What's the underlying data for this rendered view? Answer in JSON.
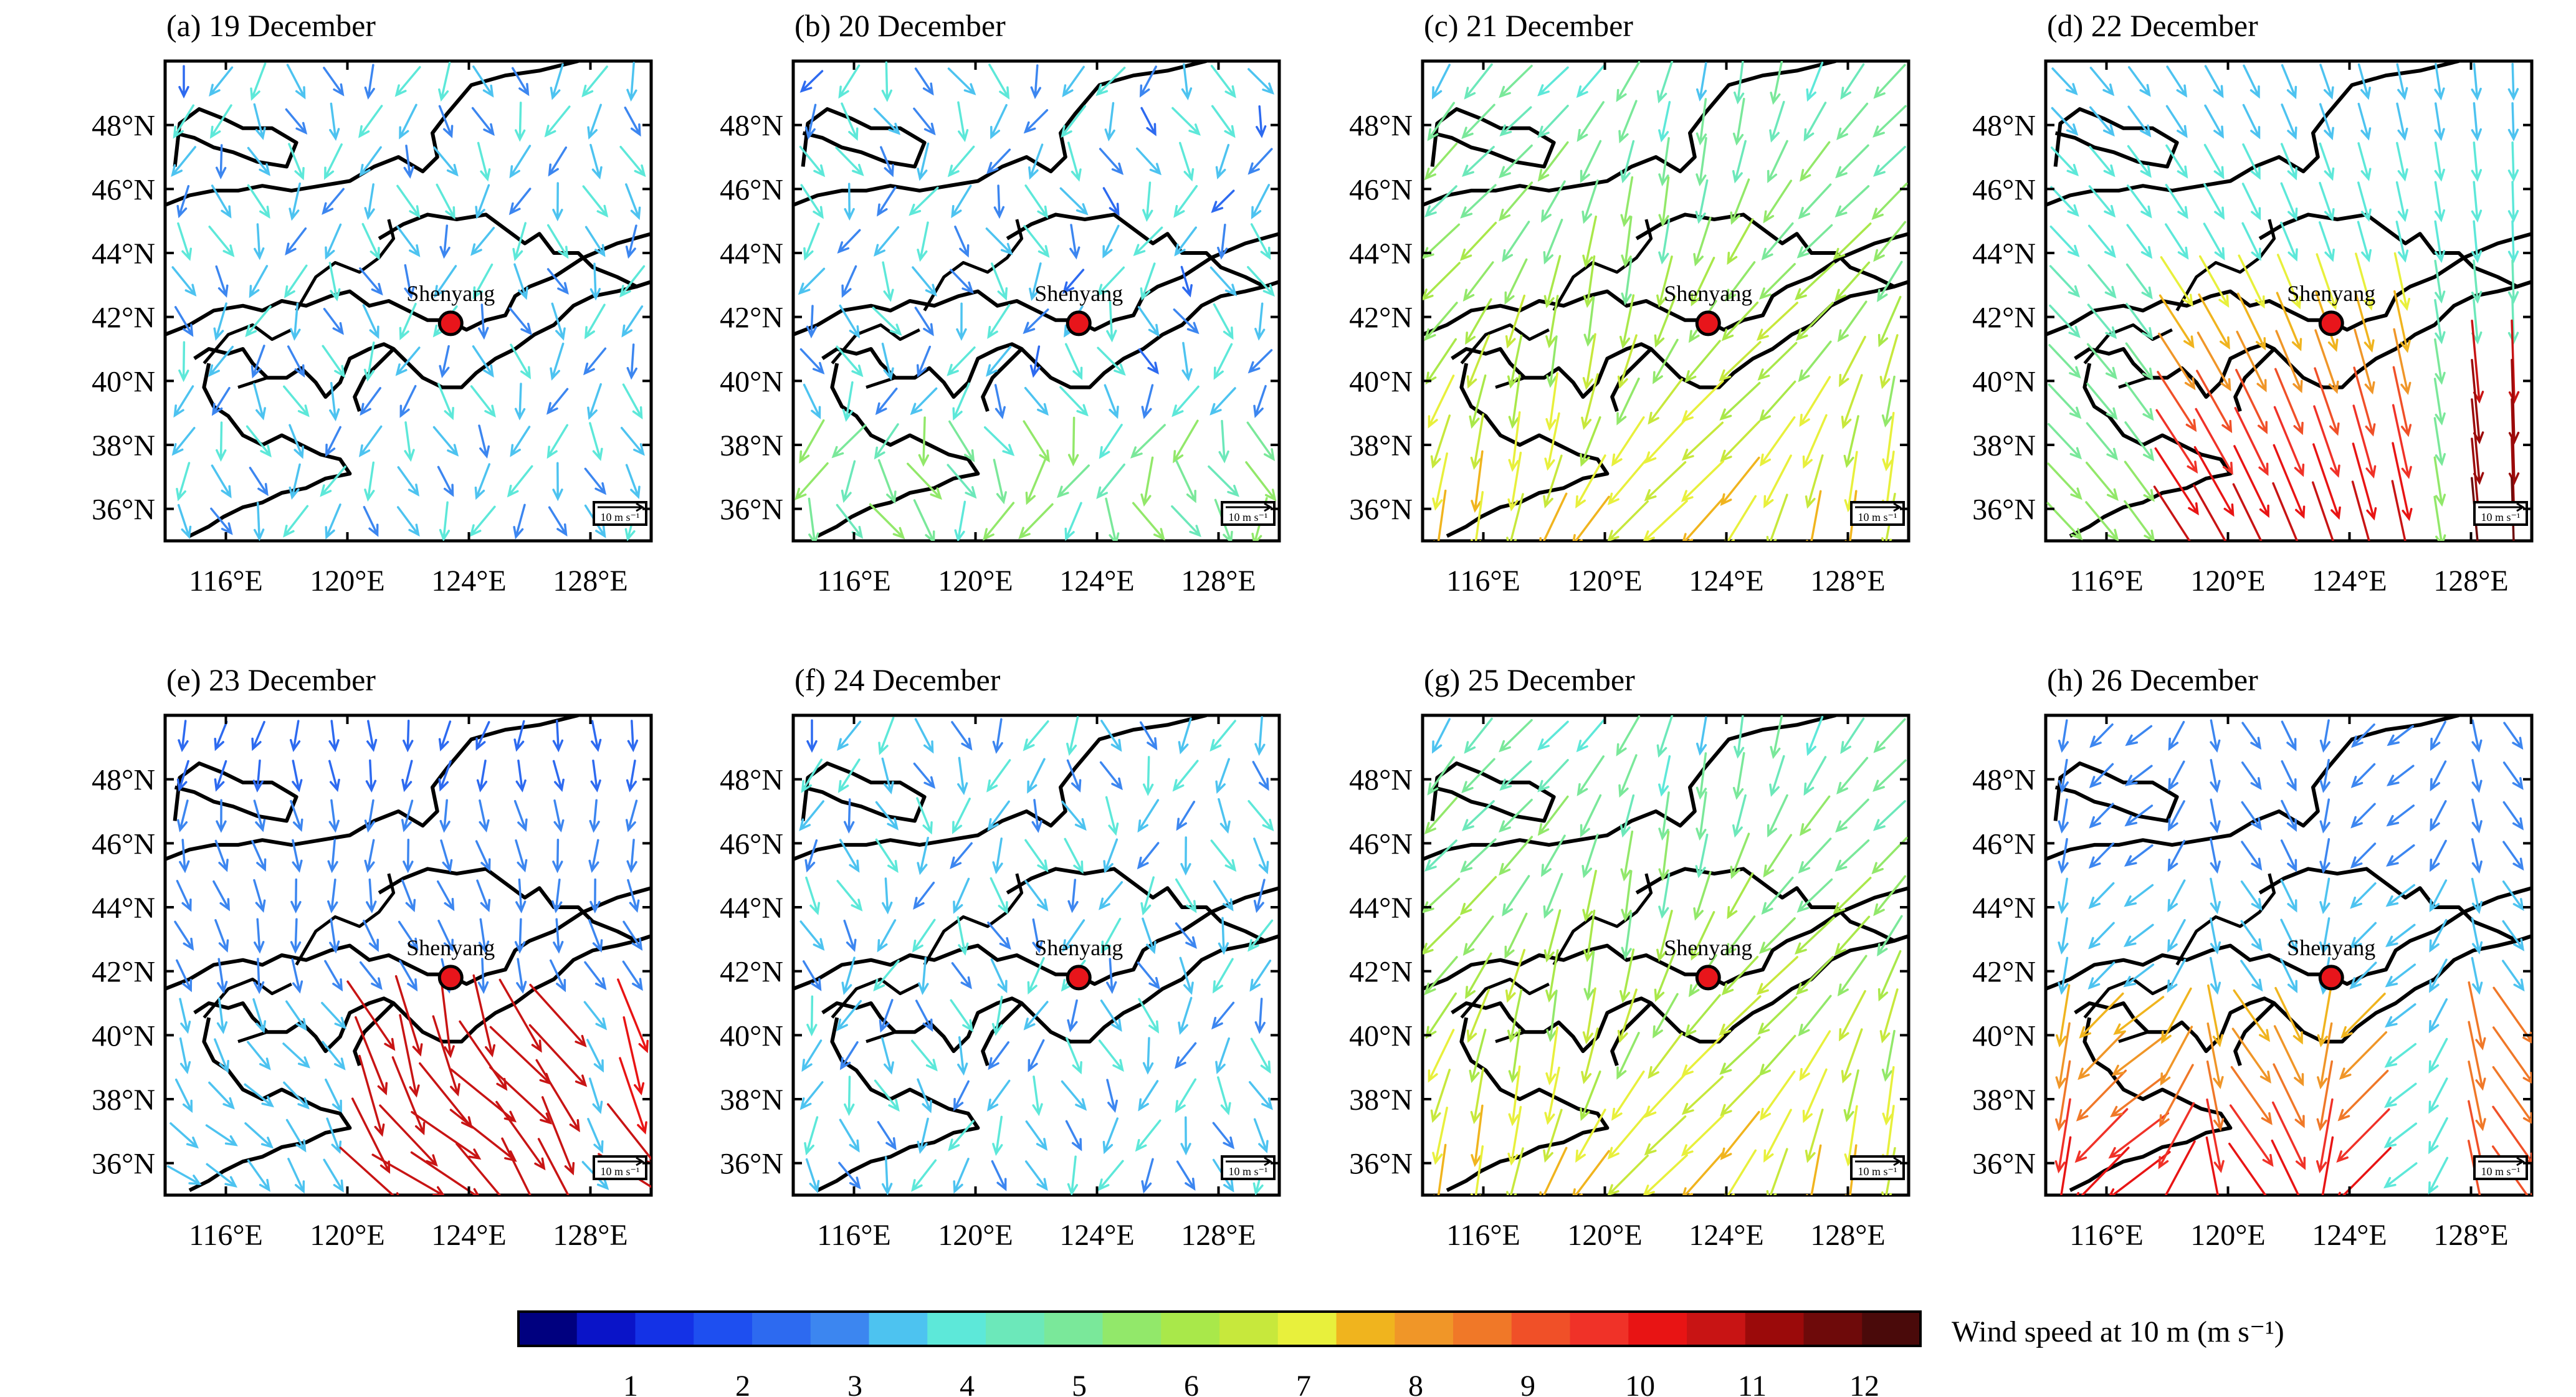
{
  "colors": {
    "wind_scale": [
      "#00007f",
      "#0a14c8",
      "#1432e6",
      "#1e4ff0",
      "#2d6af0",
      "#3c86f0",
      "#4dc3f0",
      "#5de8d9",
      "#6ce8ba",
      "#7ae89a",
      "#92e86a",
      "#a9e84a",
      "#c7e83c",
      "#e8f03c",
      "#f0b41e",
      "#f09628",
      "#f07828",
      "#f05028",
      "#f03228",
      "#e81414",
      "#c81414",
      "#9b0a0a",
      "#6e0a0a",
      "#4a0a0a"
    ],
    "city": "#e8151b"
  },
  "city": {
    "name": "Shenyang"
  },
  "reference_vector": {
    "label": "10 m s⁻¹"
  },
  "panels": [
    {
      "title": "(a) 19 December",
      "pattern": "calm"
    },
    {
      "title": "(b) 20 December",
      "pattern": "calm_w"
    },
    {
      "title": "(c) 21 December",
      "pattern": "ne_moderate"
    },
    {
      "title": "(d) 22 December",
      "pattern": "strong_se"
    },
    {
      "title": "(e) 23 December",
      "pattern": "strong_sw"
    },
    {
      "title": "(f) 24 December",
      "pattern": "calm"
    },
    {
      "title": "(g) 25 December",
      "pattern": "ne_moderate"
    },
    {
      "title": "(h) 26 December",
      "pattern": "strong_s"
    }
  ],
  "chart_data": {
    "type": "vector-field",
    "title": "",
    "x_ticks": [
      "116°E",
      "120°E",
      "124°E",
      "128°E"
    ],
    "y_ticks": [
      "48°N",
      "46°N",
      "44°N",
      "42°N",
      "40°N",
      "38°N",
      "36°N"
    ],
    "lon_range": [
      114,
      130
    ],
    "lat_range": [
      35,
      50
    ],
    "city_location": {
      "lon": 123.4,
      "lat": 41.8
    },
    "colorbar": {
      "label": "Wind speed at 10 m (m s⁻¹)",
      "ticks": [
        "1",
        "2",
        "3",
        "4",
        "5",
        "6",
        "7",
        "8",
        "9",
        "10",
        "11",
        "12"
      ],
      "range": [
        0,
        12.5
      ]
    }
  }
}
